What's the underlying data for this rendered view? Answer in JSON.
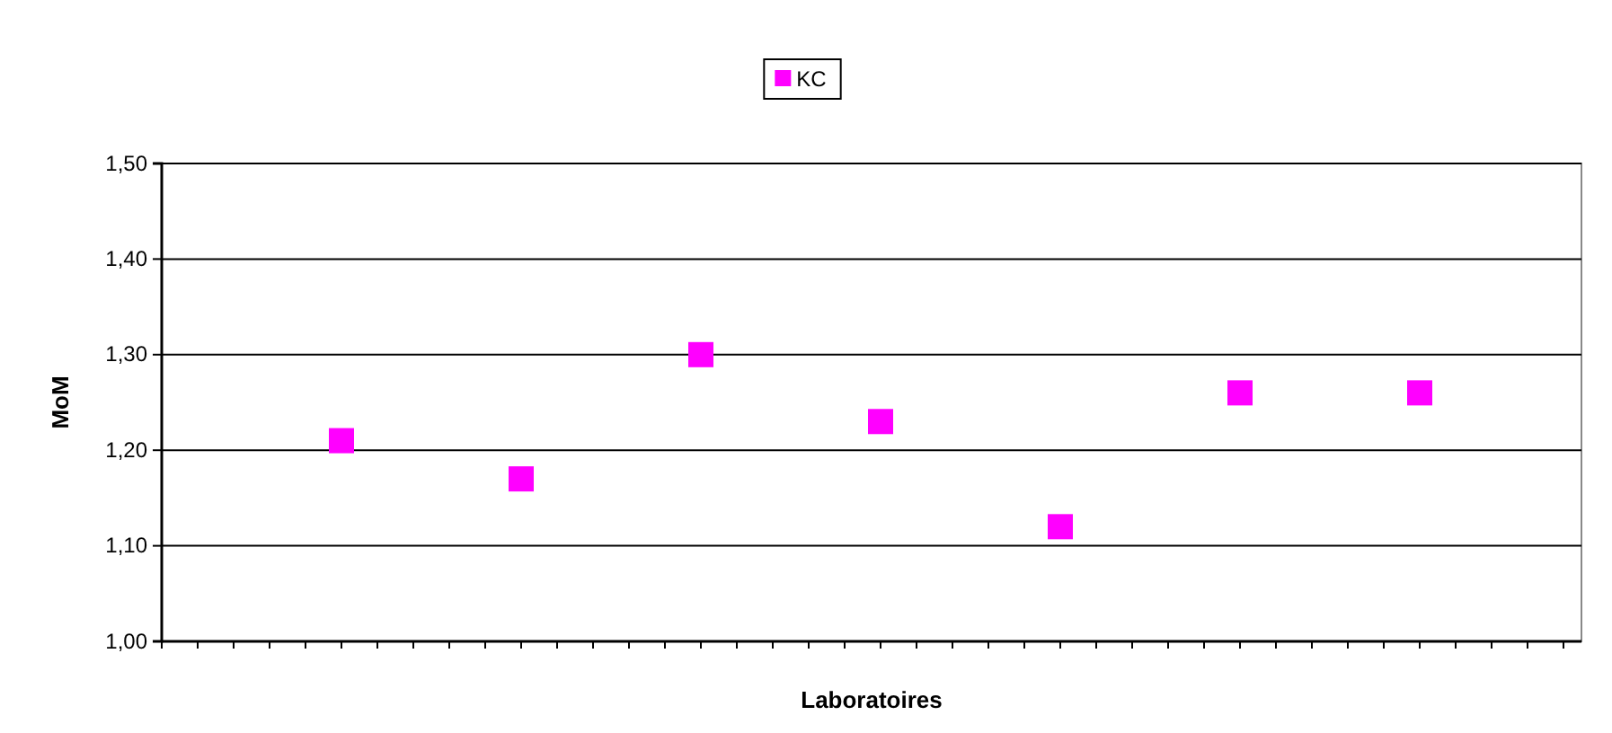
{
  "chart_data": {
    "type": "scatter",
    "xlabel": "Laboratoires",
    "ylabel": "MoM",
    "categories": [
      null,
      null,
      null,
      null,
      null,
      null,
      null,
      null,
      null,
      null,
      null,
      null,
      null,
      null,
      null,
      null,
      null,
      null,
      null,
      null,
      null,
      null,
      null,
      null,
      null,
      null,
      null,
      null,
      null,
      null,
      null,
      null,
      null,
      null,
      null,
      null,
      null,
      null,
      null,
      null
    ],
    "series": [
      {
        "name": "KC",
        "color": "#ff00ff",
        "values": [
          null,
          null,
          null,
          null,
          null,
          1.21,
          null,
          null,
          null,
          null,
          1.17,
          null,
          null,
          null,
          null,
          1.3,
          null,
          null,
          null,
          null,
          1.23,
          null,
          null,
          null,
          null,
          1.12,
          null,
          null,
          null,
          null,
          1.26,
          null,
          null,
          null,
          null,
          1.26,
          null,
          null,
          null,
          null
        ]
      }
    ],
    "ylim": [
      1.0,
      1.5
    ],
    "yticks": [
      {
        "value": 1.0,
        "label": "1,00"
      },
      {
        "value": 1.1,
        "label": "1,10"
      },
      {
        "value": 1.2,
        "label": "1,20"
      },
      {
        "value": 1.3,
        "label": "1,30"
      },
      {
        "value": 1.4,
        "label": "1,40"
      },
      {
        "value": 1.5,
        "label": "1,50"
      }
    ],
    "grid": "y",
    "legend": "top",
    "marker": "square"
  }
}
